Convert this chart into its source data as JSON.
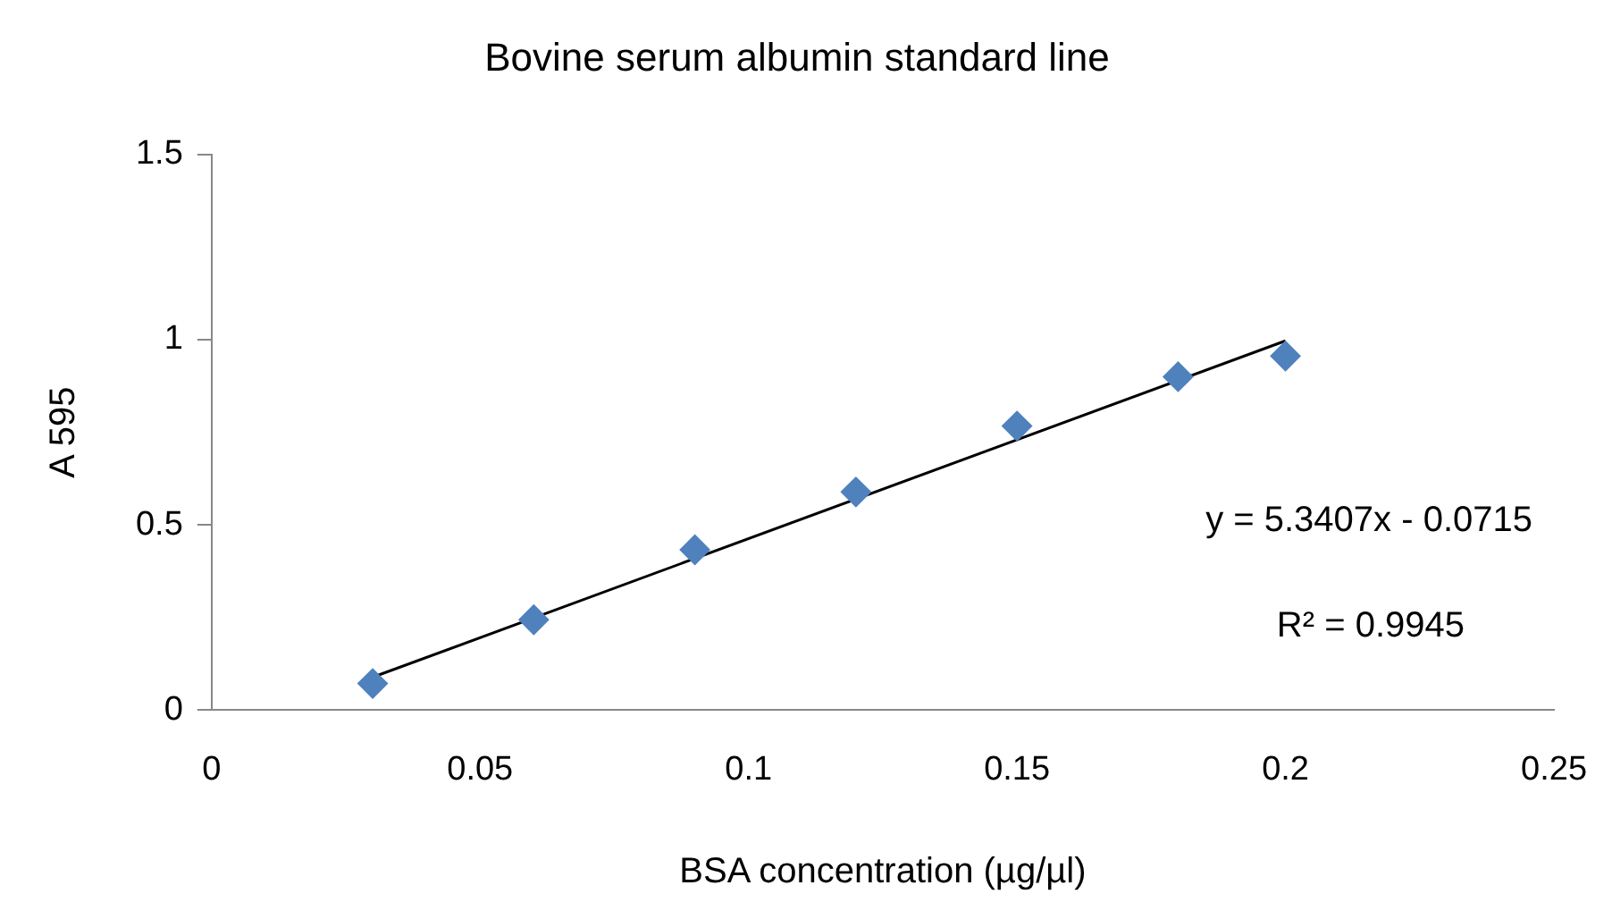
{
  "chart_data": {
    "type": "scatter",
    "title": "Bovine serum albumin standard line",
    "xlabel": "BSA concentration (µg/µl)",
    "ylabel": "A 595",
    "x": [
      0.03,
      0.06,
      0.09,
      0.12,
      0.15,
      0.18,
      0.2
    ],
    "series": [
      {
        "color": "#4f81bd",
        "marker": "diamond",
        "values": [
          0.072,
          0.244,
          0.433,
          0.589,
          0.767,
          0.9,
          0.956
        ]
      },
      {
        "type": "line",
        "color": "#000000",
        "x": [
          0.03,
          0.2
        ],
        "values": [
          0.089,
          0.997
        ],
        "line_style": "solid",
        "marker": "none"
      }
    ],
    "xlim": [
      0,
      0.25
    ],
    "xticks": [
      0,
      0.05,
      0.1,
      0.15,
      0.2,
      0.25
    ],
    "ylim": [
      0,
      1.5
    ],
    "yticks": [
      0,
      0.5,
      1,
      1.5
    ],
    "grid": false,
    "legend": false,
    "annotations": [
      "y = 5.3407x - 0.0715",
      "R² = 0.9945"
    ]
  }
}
